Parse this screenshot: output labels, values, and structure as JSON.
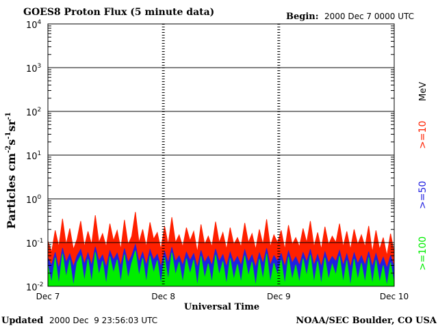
{
  "chart_data": {
    "type": "line",
    "title": "GOES8 Proton Flux (5 minute data)",
    "begin_label": "Begin:",
    "begin_value": "2000 Dec 7 0000 UTC",
    "ylabel_main": "Particles cm",
    "ylabel_sup1": "-2",
    "ylabel_s": "s",
    "ylabel_sup2": "-1",
    "ylabel_sr": "sr",
    "ylabel_sup3": "-1",
    "xlabel": "Universal Time",
    "yscale": "log",
    "ylim": [
      0.01,
      10000
    ],
    "y_ticks": [
      {
        "value": 10000,
        "base": "10",
        "exp": "4"
      },
      {
        "value": 1000,
        "base": "10",
        "exp": "3"
      },
      {
        "value": 100,
        "base": "10",
        "exp": "2"
      },
      {
        "value": 10,
        "base": "10",
        "exp": "1"
      },
      {
        "value": 1,
        "base": "10",
        "exp": "0"
      },
      {
        "value": 0.1,
        "base": "10",
        "exp": "-1"
      },
      {
        "value": 0.01,
        "base": "10",
        "exp": "-2"
      }
    ],
    "x_ticks": [
      {
        "day": 0,
        "label": "Dec 7"
      },
      {
        "day": 1,
        "label": "Dec 8"
      },
      {
        "day": 2,
        "label": "Dec 9"
      },
      {
        "day": 3,
        "label": "Dec 10"
      }
    ],
    "xlim_days": [
      0,
      3
    ],
    "grid": true,
    "series": [
      {
        "name": ">=10",
        "color": "#ff2000",
        "values": [
          0.11,
          0.06,
          0.19,
          0.08,
          0.35,
          0.09,
          0.21,
          0.07,
          0.12,
          0.31,
          0.08,
          0.18,
          0.09,
          0.42,
          0.1,
          0.16,
          0.08,
          0.27,
          0.11,
          0.19,
          0.07,
          0.33,
          0.09,
          0.14,
          0.5,
          0.1,
          0.2,
          0.08,
          0.29,
          0.12,
          0.17,
          0.07,
          0.24,
          0.09,
          0.38,
          0.1,
          0.15,
          0.08,
          0.22,
          0.11,
          0.18,
          0.06,
          0.26,
          0.09,
          0.14,
          0.08,
          0.3,
          0.1,
          0.17,
          0.07,
          0.22,
          0.09,
          0.13,
          0.08,
          0.28,
          0.1,
          0.16,
          0.07,
          0.2,
          0.09,
          0.34,
          0.08,
          0.15,
          0.1,
          0.19,
          0.07,
          0.25,
          0.09,
          0.13,
          0.08,
          0.21,
          0.1,
          0.31,
          0.08,
          0.17,
          0.07,
          0.23,
          0.09,
          0.14,
          0.1,
          0.27,
          0.08,
          0.18,
          0.07,
          0.2,
          0.09,
          0.15,
          0.08,
          0.24,
          0.06,
          0.19,
          0.07,
          0.13,
          0.05,
          0.16,
          0.06
        ]
      },
      {
        "name": ">=50",
        "color": "#2020e0",
        "values": [
          0.045,
          0.03,
          0.06,
          0.025,
          0.075,
          0.035,
          0.055,
          0.028,
          0.05,
          0.07,
          0.032,
          0.058,
          0.03,
          0.08,
          0.038,
          0.052,
          0.027,
          0.065,
          0.04,
          0.057,
          0.029,
          0.073,
          0.035,
          0.05,
          0.09,
          0.036,
          0.06,
          0.03,
          0.069,
          0.04,
          0.054,
          0.028,
          0.063,
          0.034,
          0.078,
          0.037,
          0.05,
          0.03,
          0.06,
          0.039,
          0.056,
          0.027,
          0.066,
          0.035,
          0.049,
          0.03,
          0.071,
          0.037,
          0.053,
          0.028,
          0.06,
          0.034,
          0.048,
          0.03,
          0.068,
          0.036,
          0.052,
          0.027,
          0.058,
          0.033,
          0.074,
          0.03,
          0.05,
          0.037,
          0.056,
          0.028,
          0.064,
          0.034,
          0.047,
          0.03,
          0.059,
          0.036,
          0.07,
          0.03,
          0.053,
          0.028,
          0.061,
          0.034,
          0.048,
          0.037,
          0.066,
          0.03,
          0.055,
          0.027,
          0.058,
          0.033,
          0.05,
          0.03,
          0.062,
          0.028,
          0.056,
          0.029,
          0.046,
          0.026,
          0.05,
          0.028
        ]
      },
      {
        "name": ">=100",
        "color": "#00ee00",
        "values": [
          0.03,
          0.012,
          0.045,
          0.011,
          0.055,
          0.016,
          0.04,
          0.01,
          0.035,
          0.05,
          0.013,
          0.042,
          0.012,
          0.06,
          0.018,
          0.038,
          0.011,
          0.048,
          0.02,
          0.041,
          0.012,
          0.053,
          0.015,
          0.034,
          0.065,
          0.017,
          0.044,
          0.012,
          0.05,
          0.02,
          0.039,
          0.011,
          0.046,
          0.014,
          0.058,
          0.018,
          0.036,
          0.012,
          0.043,
          0.019,
          0.04,
          0.01,
          0.049,
          0.015,
          0.033,
          0.012,
          0.052,
          0.018,
          0.037,
          0.011,
          0.044,
          0.014,
          0.032,
          0.012,
          0.05,
          0.017,
          0.036,
          0.01,
          0.042,
          0.014,
          0.055,
          0.012,
          0.034,
          0.018,
          0.04,
          0.011,
          0.047,
          0.014,
          0.031,
          0.012,
          0.043,
          0.017,
          0.052,
          0.012,
          0.037,
          0.011,
          0.045,
          0.014,
          0.032,
          0.018,
          0.049,
          0.012,
          0.039,
          0.01,
          0.042,
          0.014,
          0.034,
          0.012,
          0.046,
          0.011,
          0.04,
          0.012,
          0.03,
          0.01,
          0.035,
          0.011
        ]
      }
    ],
    "legend": {
      "placement": "right",
      "unit": "MeV",
      "entries": [
        {
          "label": ">=10",
          "color": "#ff2000"
        },
        {
          "label": ">=50",
          "color": "#2020e0"
        },
        {
          "label": ">=100",
          "color": "#00ee00"
        }
      ]
    }
  },
  "footer": {
    "updated_label": "Updated",
    "updated_value": "2000 Dec  9 23:56:03 UTC",
    "source": "NOAA/SEC Boulder, CO USA"
  }
}
